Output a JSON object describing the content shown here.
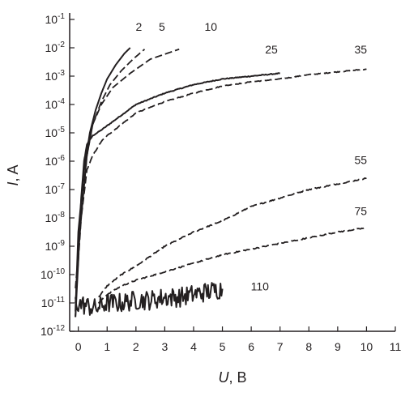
{
  "chart_data": {
    "type": "line",
    "xlabel": {
      "var": "U",
      "unit": ", В"
    },
    "ylabel": {
      "var": "I",
      "unit": ", A"
    },
    "xlim": [
      -0.3,
      11
    ],
    "ylim_log10": [
      -12,
      -1
    ],
    "y_scale": "log",
    "grid": false,
    "x_ticks": [
      {
        "value": 0,
        "label": "0"
      },
      {
        "value": 1,
        "label": "1"
      },
      {
        "value": 2,
        "label": "2"
      },
      {
        "value": 3,
        "label": "3"
      },
      {
        "value": 4,
        "label": "4"
      },
      {
        "value": 5,
        "label": "5"
      },
      {
        "value": 6,
        "label": "6"
      },
      {
        "value": 7,
        "label": "7"
      },
      {
        "value": 8,
        "label": "8"
      },
      {
        "value": 9,
        "label": "9"
      },
      {
        "value": 10,
        "label": "10"
      },
      {
        "value": 11,
        "label": "11"
      }
    ],
    "y_ticks": [
      {
        "exp": -1,
        "base": "10",
        "sup": "-1"
      },
      {
        "exp": -2,
        "base": "10",
        "sup": "-2"
      },
      {
        "exp": -3,
        "base": "10",
        "sup": "-3"
      },
      {
        "exp": -4,
        "base": "10",
        "sup": "-4"
      },
      {
        "exp": -5,
        "base": "10",
        "sup": "-5"
      },
      {
        "exp": -6,
        "base": "10",
        "sup": "-6"
      },
      {
        "exp": -7,
        "base": "10",
        "sup": "-7"
      },
      {
        "exp": -8,
        "base": "10",
        "sup": "-8"
      },
      {
        "exp": -9,
        "base": "10",
        "sup": "-9"
      },
      {
        "exp": -10,
        "base": "10",
        "sup": "-10"
      },
      {
        "exp": -11,
        "base": "10",
        "sup": "-11"
      },
      {
        "exp": -12,
        "base": "10",
        "sup": "-12"
      }
    ],
    "series": [
      {
        "name": "2",
        "style": "solid",
        "noise": 0,
        "x": [
          -0.1,
          0.0,
          0.2,
          0.4,
          0.6,
          0.8,
          1.0,
          1.3,
          1.6,
          1.8
        ],
        "log10_y": [
          -11.3,
          -8.5,
          -6.3,
          -5.0,
          -4.2,
          -3.6,
          -3.1,
          -2.6,
          -2.2,
          -2.0
        ]
      },
      {
        "name": "5",
        "style": "dash",
        "noise": 0,
        "x": [
          -0.1,
          0.0,
          0.3,
          0.5,
          0.8,
          1.1,
          1.5,
          1.9,
          2.3
        ],
        "log10_y": [
          -11.5,
          -8.8,
          -5.8,
          -4.7,
          -3.9,
          -3.3,
          -2.8,
          -2.4,
          -2.05
        ]
      },
      {
        "name": "10",
        "style": "dash",
        "noise": 0,
        "x": [
          -0.1,
          0.1,
          0.3,
          0.5,
          0.8,
          1.2,
          1.8,
          2.5,
          3.5
        ],
        "log10_y": [
          -11.0,
          -8.0,
          -5.8,
          -4.7,
          -4.0,
          -3.4,
          -2.9,
          -2.4,
          -2.05
        ]
      },
      {
        "name": "25",
        "style": "solid",
        "noise": 0.015,
        "x": [
          -0.1,
          0.0,
          0.1,
          0.2,
          0.3,
          0.5,
          0.8,
          1.2,
          1.6,
          2.0,
          3.0,
          4.0,
          5.0,
          6.0,
          7.0
        ],
        "log10_y": [
          -11.5,
          -9.5,
          -7.3,
          -6.0,
          -5.4,
          -5.1,
          -4.9,
          -4.6,
          -4.3,
          -4.0,
          -3.6,
          -3.3,
          -3.1,
          -3.0,
          -2.9
        ]
      },
      {
        "name": "35",
        "style": "dash",
        "noise": 0.015,
        "x": [
          -0.1,
          0.1,
          0.3,
          0.5,
          0.8,
          1.0,
          1.5,
          2.0,
          3.0,
          4.0,
          5.0,
          6.0,
          7.0,
          8.0,
          9.0,
          10.0
        ],
        "log10_y": [
          -10.5,
          -8.0,
          -6.3,
          -5.8,
          -5.3,
          -5.1,
          -4.7,
          -4.3,
          -3.9,
          -3.6,
          -3.35,
          -3.2,
          -3.1,
          -2.95,
          -2.85,
          -2.75
        ]
      },
      {
        "name": "55",
        "style": "dash",
        "noise": 0.02,
        "x": [
          0.7,
          1.0,
          1.5,
          2.0,
          3.0,
          4.0,
          5.0,
          6.0,
          7.0,
          8.0,
          9.0,
          10.0
        ],
        "log10_y": [
          -10.8,
          -10.4,
          -10.0,
          -9.7,
          -9.0,
          -8.5,
          -8.1,
          -7.6,
          -7.3,
          -7.0,
          -6.8,
          -6.6
        ]
      },
      {
        "name": "75",
        "style": "dash",
        "noise": 0.02,
        "x": [
          0.7,
          1.0,
          1.5,
          2.0,
          3.0,
          4.0,
          5.0,
          6.0,
          7.0,
          8.0,
          9.0,
          10.0
        ],
        "log10_y": [
          -11.0,
          -10.7,
          -10.4,
          -10.2,
          -9.9,
          -9.6,
          -9.3,
          -9.1,
          -8.9,
          -8.7,
          -8.5,
          -8.35
        ]
      },
      {
        "name": "110",
        "style": "solid",
        "noise": 0.35,
        "x": [
          -0.1,
          0.3,
          0.6,
          1.0,
          1.5,
          2.0,
          2.5,
          3.0,
          3.5,
          4.0,
          4.5,
          5.0
        ],
        "log10_y": [
          -11.0,
          -11.1,
          -11.2,
          -11.0,
          -11.0,
          -10.9,
          -10.9,
          -10.8,
          -10.8,
          -10.7,
          -10.6,
          -10.5
        ]
      }
    ],
    "annotations": [
      {
        "text": "2",
        "x": 2.1,
        "log10_y": -1.4
      },
      {
        "text": "5",
        "x": 2.9,
        "log10_y": -1.4
      },
      {
        "text": "10",
        "x": 4.6,
        "log10_y": -1.4
      },
      {
        "text": "25",
        "x": 6.7,
        "log10_y": -2.2
      },
      {
        "text": "35",
        "x": 9.8,
        "log10_y": -2.2
      },
      {
        "text": "55",
        "x": 9.8,
        "log10_y": -6.1
      },
      {
        "text": "75",
        "x": 9.8,
        "log10_y": -7.9
      },
      {
        "text": "110",
        "x": 6.3,
        "log10_y": -10.55
      }
    ]
  }
}
